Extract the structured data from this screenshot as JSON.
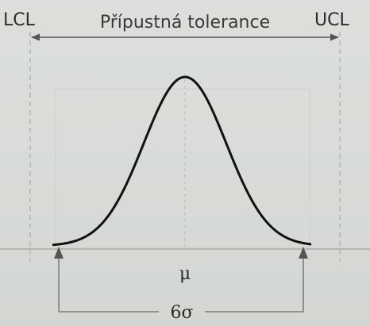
{
  "labels": {
    "lcl": "LCL",
    "ucl": "UCL",
    "tolerance": "Přípustná tolerance",
    "mean": "μ",
    "spread": "6σ"
  },
  "colors": {
    "curve": "#111111",
    "guide": "#a9aca8",
    "arrow": "#555555",
    "frame": "#3c3c3c"
  }
}
